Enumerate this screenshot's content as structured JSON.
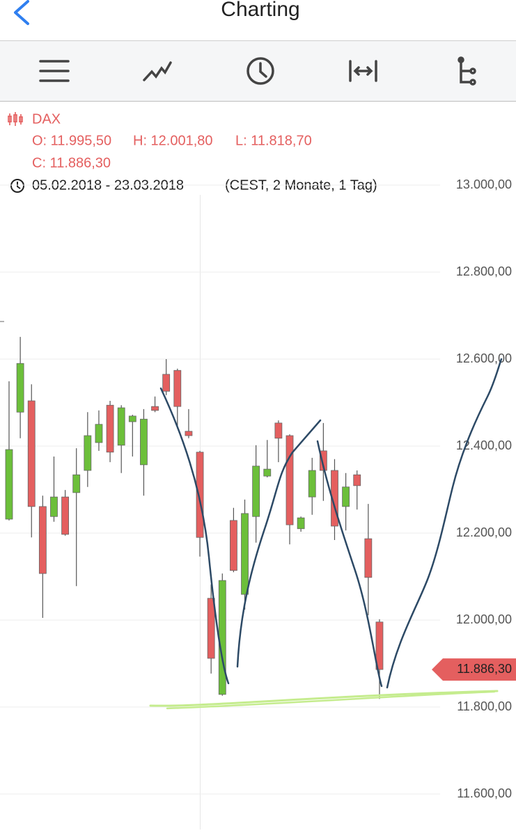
{
  "header": {
    "title": "Charting"
  },
  "info": {
    "symbol": "DAX",
    "open": "O: 11.995,50",
    "high": "H: 12.001,80",
    "low": "L: 11.818,70",
    "close": "C: 11.886,30",
    "range": "05.02.2018 - 23.03.2018",
    "details": "(CEST, 2 Monate, 1 Tag)"
  },
  "chart_data": {
    "type": "candlestick",
    "open": [
      12232,
      12478,
      12504,
      12261,
      12238,
      12283,
      12293,
      12344,
      12408,
      12494,
      12402,
      12456,
      12357,
      12491,
      12565,
      12574,
      12434,
      12386,
      12050,
      11829,
      12229,
      12059,
      12238,
      12331,
      12453,
      12424,
      12210,
      12283,
      12389,
      12344,
      12261,
      12334,
      12187,
      11995.5
    ],
    "high": [
      12549,
      12651,
      12542,
      12286,
      12376,
      12299,
      12395,
      12478,
      12482,
      12504,
      12494,
      12472,
      12485,
      12514,
      12600,
      12578,
      12485,
      12389,
      12082,
      12107,
      12258,
      12277,
      12402,
      12414,
      12459,
      12427,
      12238,
      12373,
      12453,
      12370,
      12338,
      12344,
      12267,
      12001.8
    ],
    "low": [
      12229,
      12418,
      12190,
      12005,
      12226,
      12194,
      12078,
      12306,
      12389,
      12363,
      12338,
      12376,
      12286,
      12478,
      12517,
      12440,
      12418,
      12146,
      11877,
      11826,
      12110,
      12024,
      12178,
      12328,
      12363,
      12174,
      12203,
      12242,
      12274,
      12184,
      12206,
      12254,
      12011,
      11818.7
    ],
    "close": [
      12392,
      12590,
      12261,
      12107,
      12283,
      12197,
      12334,
      12424,
      12450,
      12386,
      12488,
      12469,
      12462,
      12482,
      12526,
      12491,
      12424,
      12190,
      11912,
      12091,
      12114,
      12245,
      12354,
      12347,
      12418,
      12219,
      12235,
      12344,
      12344,
      12216,
      12306,
      12309,
      12098,
      11886.3
    ],
    "up_color": "#6cbf3a",
    "down_color": "#e45f5f",
    "ylim": [
      11518.4,
      13193.6
    ],
    "yticks": [
      {
        "value": 11600,
        "label": "11.600,00"
      },
      {
        "value": 11800,
        "label": "11.800,00"
      },
      {
        "value": 12000,
        "label": "12.000,00"
      },
      {
        "value": 12200,
        "label": "12.200,00"
      },
      {
        "value": 12400,
        "label": "12.400,00"
      },
      {
        "value": 12600,
        "label": "12.600,00"
      },
      {
        "value": 12800,
        "label": "12.800,00"
      },
      {
        "value": 13000,
        "label": "13.000,00"
      }
    ],
    "grid": true,
    "last": {
      "value": 11886.3,
      "label": "11.886,30"
    }
  }
}
